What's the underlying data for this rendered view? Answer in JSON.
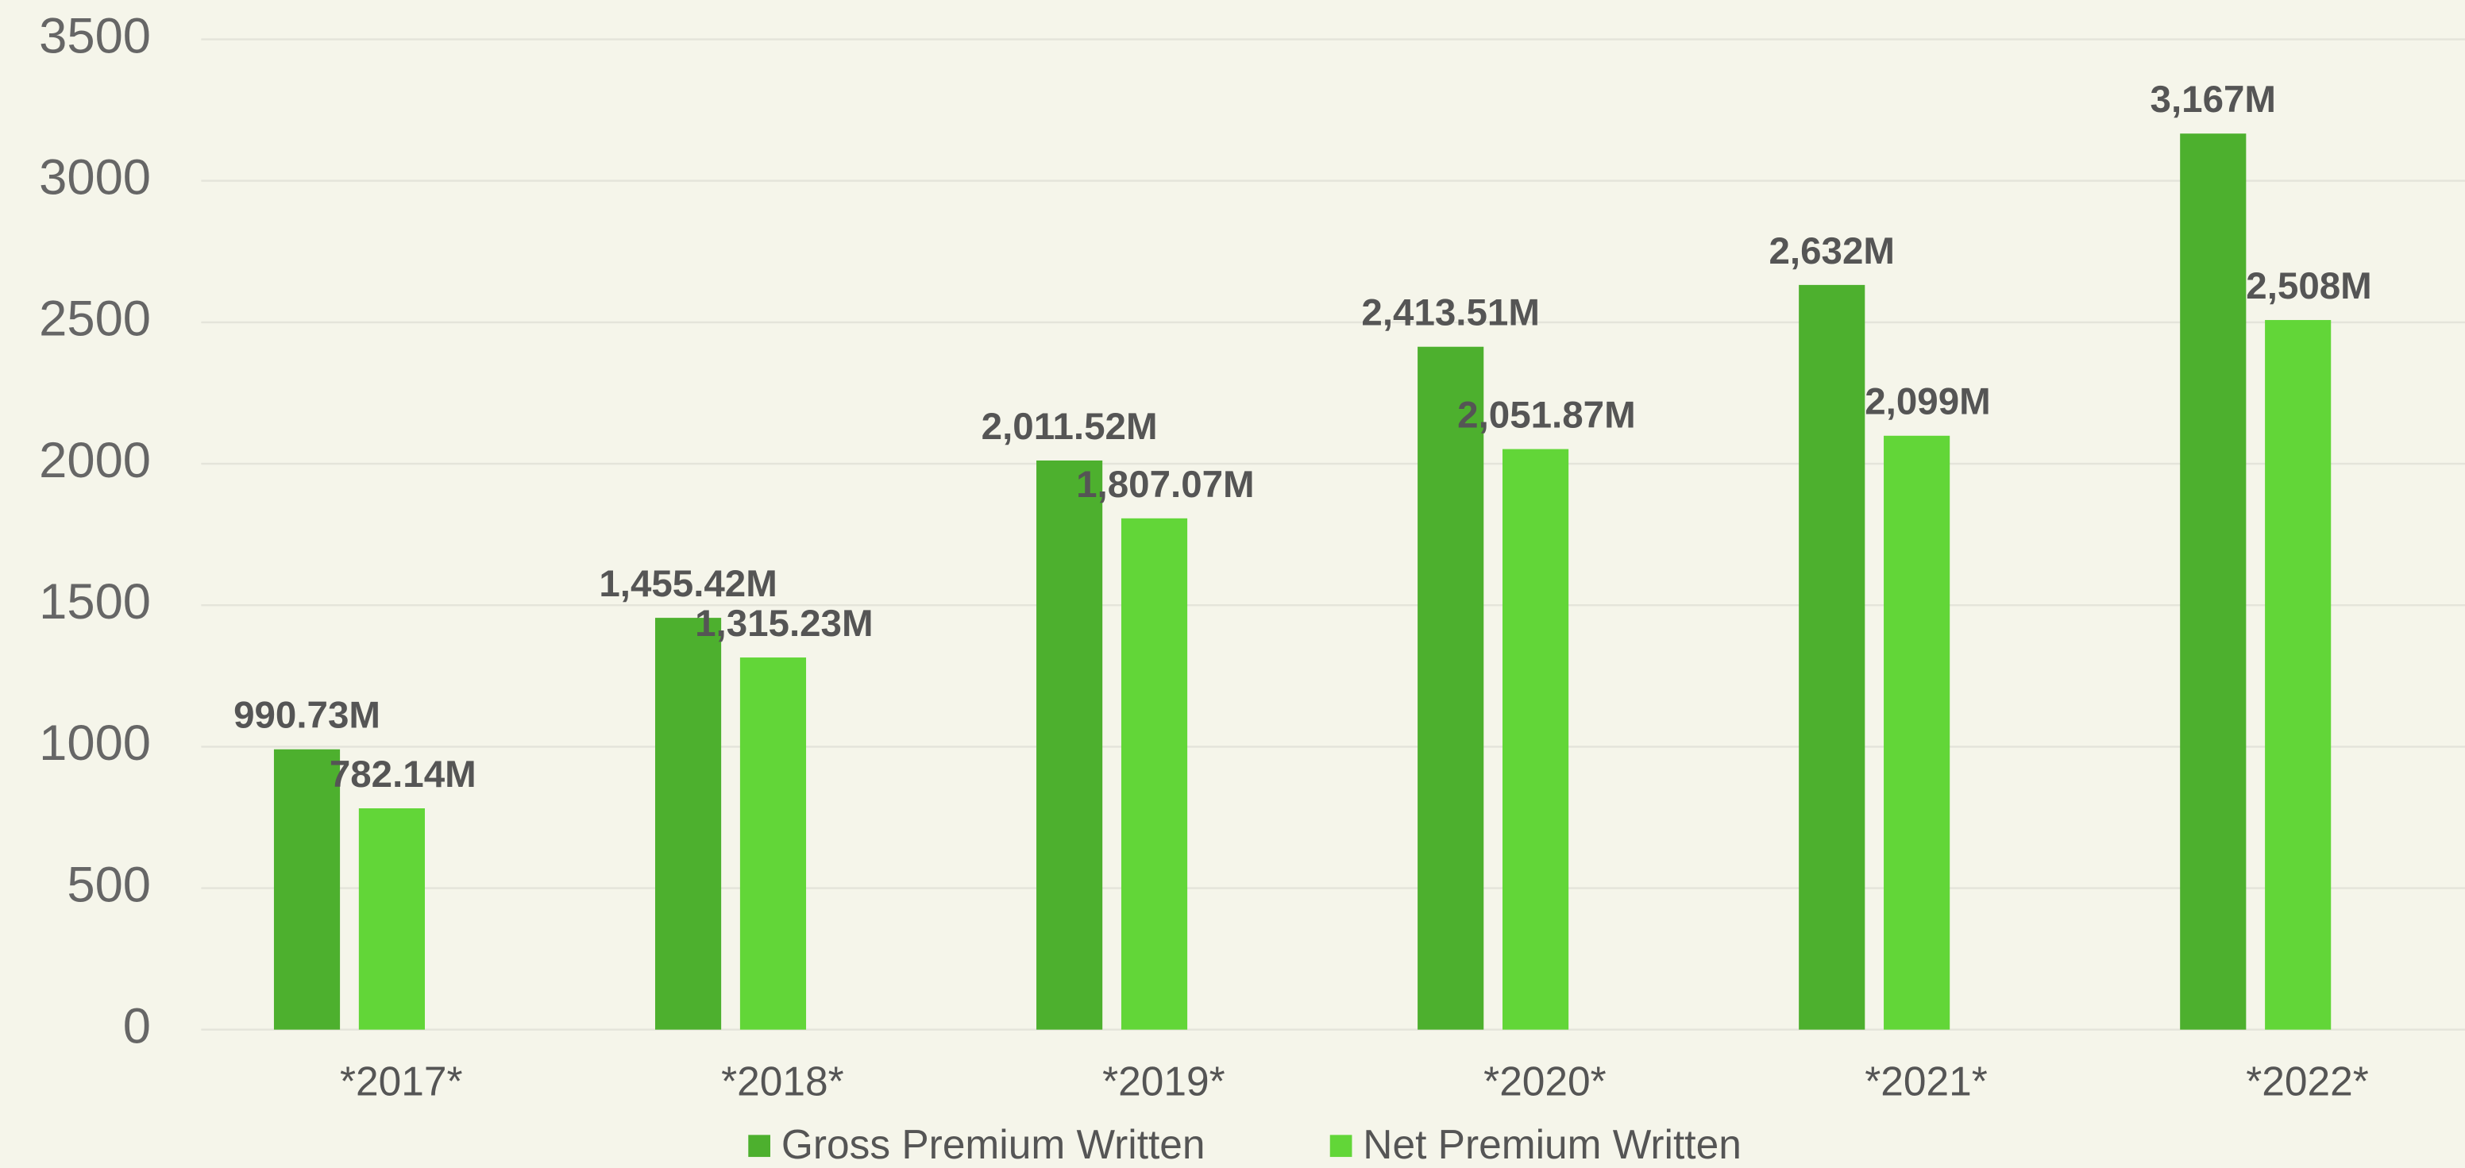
{
  "chart_data": {
    "type": "bar",
    "categories": [
      "*2017*",
      "*2018*",
      "*2019*",
      "*2020*",
      "*2021*",
      "*2022*"
    ],
    "series": [
      {
        "name": "Gross Premium Written",
        "color": "#4db02e",
        "values": [
          990.73,
          1455.42,
          2011.52,
          2413.51,
          2632,
          3167
        ],
        "value_labels": [
          "990.73M",
          "1,455.42M",
          "2,011.52M",
          "2,413.51M",
          "2,632M",
          "3,167M"
        ]
      },
      {
        "name": "Net Premium Written",
        "color": "#62d638",
        "values": [
          782.14,
          1315.23,
          1807.07,
          2051.87,
          2099,
          2508
        ],
        "value_labels": [
          "782.14M",
          "1,315.23M",
          "1,807.07M",
          "2,051.87M",
          "2,099M",
          "2,508M"
        ]
      }
    ],
    "ylim": [
      0,
      3500
    ],
    "yticks": [
      0,
      500,
      1000,
      1500,
      2000,
      2500,
      3000,
      3500
    ],
    "grid": true,
    "legend": "bottom"
  }
}
